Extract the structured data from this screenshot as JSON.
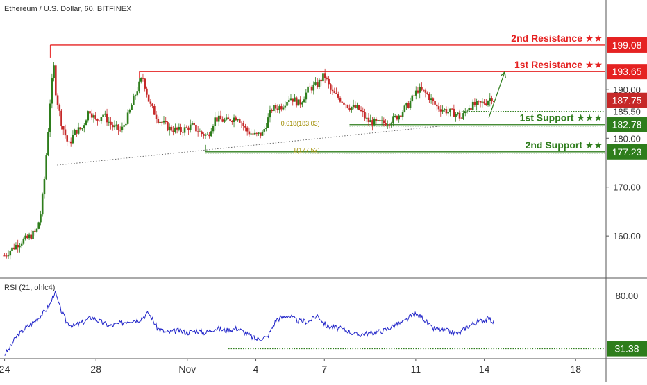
{
  "chart_data": {
    "type": "candlestick",
    "title": "Ethereum / U.S. Dollar, 60, BITFINEX",
    "price_axis": {
      "range": [
        151.5,
        208.3
      ],
      "ticks": [
        {
          "label": "190.00",
          "value": 190.0
        },
        {
          "label": "180.00",
          "value": 180.0
        },
        {
          "label": "170.00",
          "value": 170.0
        },
        {
          "label": "160.00",
          "value": 160.0
        }
      ]
    },
    "time_axis": {
      "labels": [
        {
          "label": "24",
          "day": 0
        },
        {
          "label": "28",
          "day": 4
        },
        {
          "label": "Nov",
          "day": 8
        },
        {
          "label": "4",
          "day": 11
        },
        {
          "label": "7",
          "day": 14
        },
        {
          "label": "11",
          "day": 18
        },
        {
          "label": "14",
          "day": 21
        },
        {
          "label": "18",
          "day": 25
        }
      ],
      "visible_days": [
        -0.2,
        26.3
      ]
    },
    "levels": [
      {
        "name": "2nd Resistance ★★",
        "value": 199.08,
        "label": "199.08",
        "color": "#e52222",
        "style": "solid",
        "from_day": 2.0
      },
      {
        "name": "1st Resistance ★★",
        "value": 193.65,
        "label": "193.65",
        "color": "#e52222",
        "style": "solid",
        "from_day": 5.9
      },
      {
        "name": "",
        "value": 185.5,
        "label": "185.50",
        "color": "#2e7d1c",
        "style": "dotted",
        "from_day": 19.9
      },
      {
        "name": "1st Support ★★★",
        "value": 182.78,
        "label": "182.78",
        "color": "#2e7d1c",
        "style": "solid",
        "from_day": 15.1
      },
      {
        "name": "2nd Support ★★",
        "value": 177.23,
        "label": "177.23",
        "color": "#2e7d1c",
        "style": "solid",
        "from_day": 8.8
      }
    ],
    "current_price": {
      "value": 187.75,
      "label": "187.75"
    },
    "fib_labels": [
      {
        "text": "0.618(183.03)",
        "day": 13.8,
        "value": 183.03
      },
      {
        "text": "1(177.53)",
        "day": 13.8,
        "value": 177.53
      }
    ],
    "trendline": {
      "from": {
        "day": 2.3,
        "value": 174.5
      },
      "to": {
        "day": 19.1,
        "value": 182.5
      }
    },
    "projection_arrow": {
      "from": {
        "day": 21.2,
        "value": 184.2
      },
      "to": {
        "day": 21.9,
        "value": 193.6
      }
    },
    "candles": {
      "waypoints": [
        [
          0.0,
          156.0
        ],
        [
          0.6,
          158.5
        ],
        [
          1.0,
          159.5
        ],
        [
          1.4,
          161.0
        ],
        [
          1.6,
          165.0
        ],
        [
          1.75,
          172.0
        ],
        [
          1.9,
          181.0
        ],
        [
          2.0,
          188.0
        ],
        [
          2.15,
          195.0
        ],
        [
          2.25,
          189.0
        ],
        [
          2.5,
          183.0
        ],
        [
          2.8,
          178.5
        ],
        [
          3.1,
          181.5
        ],
        [
          3.4,
          182.0
        ],
        [
          3.7,
          186.0
        ],
        [
          4.0,
          183.5
        ],
        [
          4.3,
          185.0
        ],
        [
          4.7,
          182.5
        ],
        [
          5.1,
          181.5
        ],
        [
          5.4,
          184.5
        ],
        [
          5.8,
          190.0
        ],
        [
          6.05,
          192.5
        ],
        [
          6.35,
          187.0
        ],
        [
          6.7,
          184.0
        ],
        [
          7.2,
          182.0
        ],
        [
          7.7,
          181.5
        ],
        [
          8.2,
          182.5
        ],
        [
          8.6,
          181.0
        ],
        [
          8.9,
          180.5
        ],
        [
          9.2,
          184.0
        ],
        [
          9.7,
          183.5
        ],
        [
          10.2,
          184.5
        ],
        [
          10.6,
          181.5
        ],
        [
          11.0,
          180.5
        ],
        [
          11.3,
          181.0
        ],
        [
          11.7,
          186.0
        ],
        [
          12.1,
          186.5
        ],
        [
          12.5,
          188.5
        ],
        [
          12.9,
          187.0
        ],
        [
          13.3,
          190.0
        ],
        [
          13.7,
          191.0
        ],
        [
          14.0,
          193.0
        ],
        [
          14.3,
          189.5
        ],
        [
          14.7,
          188.0
        ],
        [
          15.1,
          186.5
        ],
        [
          15.5,
          186.0
        ],
        [
          15.9,
          183.5
        ],
        [
          16.4,
          183.0
        ],
        [
          16.9,
          183.5
        ],
        [
          17.2,
          184.5
        ],
        [
          17.7,
          187.0
        ],
        [
          18.1,
          190.0
        ],
        [
          18.5,
          189.0
        ],
        [
          18.9,
          186.5
        ],
        [
          19.4,
          185.5
        ],
        [
          19.8,
          185.0
        ],
        [
          20.0,
          184.0
        ],
        [
          20.3,
          186.5
        ],
        [
          20.8,
          187.0
        ],
        [
          21.1,
          187.5
        ],
        [
          21.3,
          188.5
        ],
        [
          21.45,
          187.75
        ]
      ],
      "spacing_days": 0.083,
      "up_color": "#2e7d1c",
      "down_color": "#c62828"
    }
  },
  "rsi_panel": {
    "label": "RSI (21, ohlc4)",
    "range": [
      23.5,
      95.2
    ],
    "ticks": [
      {
        "label": "80.00",
        "value": 80.0
      }
    ],
    "level": {
      "value": 31.38,
      "label": "31.38",
      "from_day": 9.8
    },
    "line_color": "#1e22c8",
    "waypoints": [
      [
        0.0,
        26.0
      ],
      [
        0.2,
        31.0
      ],
      [
        0.5,
        42.0
      ],
      [
        0.9,
        50.0
      ],
      [
        1.3,
        56.0
      ],
      [
        1.7,
        64.0
      ],
      [
        2.0,
        72.0
      ],
      [
        2.2,
        84.0
      ],
      [
        2.4,
        70.0
      ],
      [
        2.7,
        56.0
      ],
      [
        3.0,
        52.0
      ],
      [
        3.4,
        55.0
      ],
      [
        3.8,
        60.0
      ],
      [
        4.2,
        56.0
      ],
      [
        4.6,
        52.0
      ],
      [
        5.0,
        54.0
      ],
      [
        5.4,
        57.0
      ],
      [
        5.9,
        58.0
      ],
      [
        6.3,
        64.0
      ],
      [
        6.7,
        50.0
      ],
      [
        7.1,
        46.0
      ],
      [
        7.6,
        48.0
      ],
      [
        8.0,
        46.0
      ],
      [
        8.4,
        48.0
      ],
      [
        8.8,
        46.0
      ],
      [
        9.2,
        50.0
      ],
      [
        9.7,
        48.0
      ],
      [
        10.2,
        50.0
      ],
      [
        10.6,
        45.0
      ],
      [
        11.0,
        40.0
      ],
      [
        11.5,
        42.0
      ],
      [
        11.9,
        58.0
      ],
      [
        12.4,
        62.0
      ],
      [
        12.8,
        57.0
      ],
      [
        13.3,
        56.0
      ],
      [
        13.7,
        62.0
      ],
      [
        14.1,
        52.0
      ],
      [
        14.6,
        50.0
      ],
      [
        15.0,
        48.0
      ],
      [
        15.4,
        44.0
      ],
      [
        15.8,
        45.0
      ],
      [
        16.2,
        46.0
      ],
      [
        16.6,
        48.0
      ],
      [
        17.0,
        52.0
      ],
      [
        17.5,
        56.0
      ],
      [
        17.9,
        63.0
      ],
      [
        18.3,
        60.0
      ],
      [
        18.7,
        50.0
      ],
      [
        19.1,
        49.0
      ],
      [
        19.5,
        47.0
      ],
      [
        19.9,
        45.0
      ],
      [
        20.2,
        51.0
      ],
      [
        20.6,
        55.0
      ],
      [
        20.9,
        57.0
      ],
      [
        21.2,
        59.0
      ],
      [
        21.45,
        55.0
      ]
    ]
  },
  "colors": {
    "resistance": "#e52222",
    "support": "#2e7d1c",
    "price_tag": "#c62828",
    "fib_text": "#a08c00",
    "text": "#333333",
    "axis_text": "#333333",
    "separator": "#555555",
    "page_background": "#ffffff"
  }
}
